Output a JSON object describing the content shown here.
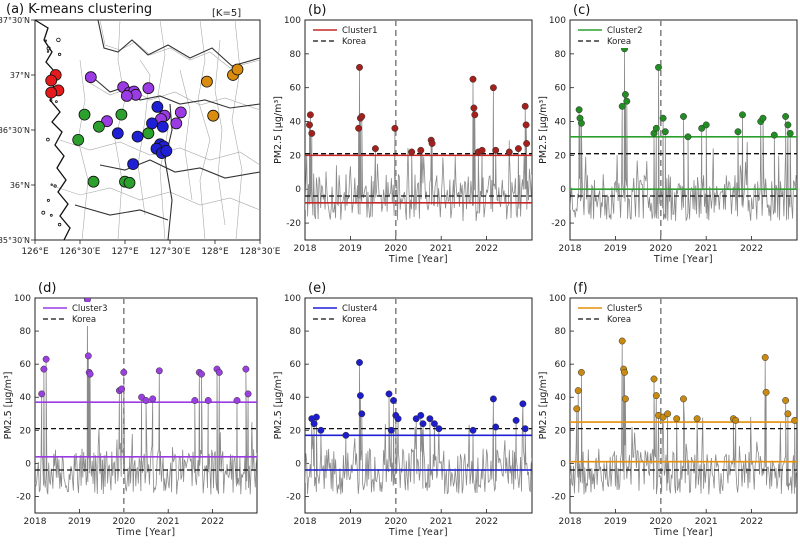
{
  "chart_data": [
    {
      "panel": "a",
      "type": "scatter",
      "title": "(a) K-means clustering",
      "annotation": "[K=5]",
      "x_ticks": [
        "126°E",
        "126°30′E",
        "127°E",
        "127°30′E",
        "128°E",
        "128°30′E"
      ],
      "y_ticks": [
        "35°30′N",
        "36°N",
        "36°30′N",
        "37°N",
        "37°30′N"
      ],
      "xlim": [
        126.0,
        128.5
      ],
      "ylim": [
        35.5,
        37.5
      ],
      "colors": {
        "c1": "#e41a1c",
        "c2": "#2ca02c",
        "c3": "#9b3be3",
        "c4": "#1f1fd6",
        "c5": "#d98c0e"
      },
      "stations": [
        {
          "cluster": "c1",
          "lon": 126.23,
          "lat": 37.0
        },
        {
          "cluster": "c1",
          "lon": 126.18,
          "lat": 36.95
        },
        {
          "cluster": "c1",
          "lon": 126.26,
          "lat": 36.86
        },
        {
          "cluster": "c1",
          "lon": 126.18,
          "lat": 36.84
        },
        {
          "cluster": "c3",
          "lon": 126.62,
          "lat": 36.98
        },
        {
          "cluster": "c3",
          "lon": 126.98,
          "lat": 36.89
        },
        {
          "cluster": "c3",
          "lon": 127.05,
          "lat": 36.84
        },
        {
          "cluster": "c3",
          "lon": 127.1,
          "lat": 36.85
        },
        {
          "cluster": "c3",
          "lon": 127.12,
          "lat": 36.82
        },
        {
          "cluster": "c3",
          "lon": 127.02,
          "lat": 36.81
        },
        {
          "cluster": "c3",
          "lon": 127.26,
          "lat": 36.88
        },
        {
          "cluster": "c3",
          "lon": 127.62,
          "lat": 36.66
        },
        {
          "cluster": "c3",
          "lon": 127.44,
          "lat": 36.63
        },
        {
          "cluster": "c3",
          "lon": 127.4,
          "lat": 36.6
        },
        {
          "cluster": "c3",
          "lon": 127.57,
          "lat": 36.56
        },
        {
          "cluster": "c3",
          "lon": 126.8,
          "lat": 36.58
        },
        {
          "cluster": "c2",
          "lon": 126.55,
          "lat": 36.64
        },
        {
          "cluster": "c2",
          "lon": 126.71,
          "lat": 36.53
        },
        {
          "cluster": "c2",
          "lon": 126.96,
          "lat": 36.64
        },
        {
          "cluster": "c2",
          "lon": 127.26,
          "lat": 36.47
        },
        {
          "cluster": "c2",
          "lon": 126.48,
          "lat": 36.41
        },
        {
          "cluster": "c2",
          "lon": 126.65,
          "lat": 36.03
        },
        {
          "cluster": "c2",
          "lon": 127.0,
          "lat": 36.03
        },
        {
          "cluster": "c2",
          "lon": 127.05,
          "lat": 36.02
        },
        {
          "cluster": "c4",
          "lon": 127.36,
          "lat": 36.71
        },
        {
          "cluster": "c4",
          "lon": 127.3,
          "lat": 36.56
        },
        {
          "cluster": "c4",
          "lon": 127.42,
          "lat": 36.53
        },
        {
          "cluster": "c4",
          "lon": 126.92,
          "lat": 36.47
        },
        {
          "cluster": "c4",
          "lon": 127.14,
          "lat": 36.44
        },
        {
          "cluster": "c4",
          "lon": 127.39,
          "lat": 36.37
        },
        {
          "cluster": "c4",
          "lon": 127.43,
          "lat": 36.35
        },
        {
          "cluster": "c4",
          "lon": 127.35,
          "lat": 36.33
        },
        {
          "cluster": "c4",
          "lon": 127.41,
          "lat": 36.29
        },
        {
          "cluster": "c4",
          "lon": 127.46,
          "lat": 36.31
        },
        {
          "cluster": "c4",
          "lon": 127.09,
          "lat": 36.19
        },
        {
          "cluster": "c5",
          "lon": 127.91,
          "lat": 36.94
        },
        {
          "cluster": "c5",
          "lon": 128.2,
          "lat": 37.0
        },
        {
          "cluster": "c5",
          "lon": 128.25,
          "lat": 37.05
        },
        {
          "cluster": "c5",
          "lon": 127.98,
          "lat": 36.63
        }
      ]
    },
    {
      "panel": "b",
      "type": "line",
      "title": "(b)",
      "color": "#c62828",
      "dot_color": "#a3201d",
      "legend": [
        "Cluster1",
        "Korea"
      ],
      "xlabel": "Time [Year]",
      "ylabel": "PM2.5 [μg/m³]",
      "xlim": [
        2018,
        2023
      ],
      "ylim": [
        -30,
        100
      ],
      "x_ticks": [
        2018,
        2019,
        2020,
        2021,
        2022
      ],
      "y_ticks": [
        -20,
        0,
        20,
        40,
        60,
        80,
        100
      ],
      "vline": 2020,
      "cluster_levels": [
        20,
        -8
      ],
      "korea_levels": [
        21,
        -4
      ],
      "peaks": [
        [
          2018.1,
          38
        ],
        [
          2018.12,
          44
        ],
        [
          2018.15,
          33
        ],
        [
          2019.2,
          72
        ],
        [
          2019.22,
          42
        ],
        [
          2019.18,
          36
        ],
        [
          2019.25,
          43
        ],
        [
          2019.55,
          24
        ],
        [
          2019.98,
          36
        ],
        [
          2020.35,
          22
        ],
        [
          2020.55,
          23
        ],
        [
          2020.78,
          29
        ],
        [
          2020.8,
          27
        ],
        [
          2021.7,
          65
        ],
        [
          2021.72,
          48
        ],
        [
          2021.74,
          44
        ],
        [
          2021.82,
          22
        ],
        [
          2021.9,
          23
        ],
        [
          2022.15,
          60
        ],
        [
          2022.2,
          23
        ],
        [
          2022.5,
          22
        ],
        [
          2022.7,
          24
        ],
        [
          2022.85,
          49
        ],
        [
          2022.87,
          38
        ],
        [
          2022.88,
          27
        ]
      ],
      "seed": 11
    },
    {
      "panel": "c",
      "type": "line",
      "title": "(c)",
      "color": "#2ca02c",
      "dot_color": "#248c24",
      "legend": [
        "Cluster2",
        "Korea"
      ],
      "xlabel": "Time [Year]",
      "ylabel": "PM2.5 [μg/m³]",
      "xlim": [
        2018,
        2023
      ],
      "ylim": [
        -30,
        100
      ],
      "x_ticks": [
        2018,
        2019,
        2020,
        2021,
        2022
      ],
      "y_ticks": [
        -20,
        0,
        20,
        40,
        60,
        80,
        100
      ],
      "vline": 2020,
      "cluster_levels": [
        31,
        0
      ],
      "korea_levels": [
        21,
        -4
      ],
      "peaks": [
        [
          2018.2,
          47
        ],
        [
          2018.22,
          42
        ],
        [
          2018.25,
          39
        ],
        [
          2019.2,
          83
        ],
        [
          2019.22,
          56
        ],
        [
          2019.15,
          49
        ],
        [
          2019.25,
          52
        ],
        [
          2019.85,
          33
        ],
        [
          2019.9,
          36
        ],
        [
          2019.95,
          72
        ],
        [
          2020.05,
          42
        ],
        [
          2020.1,
          34
        ],
        [
          2020.5,
          43
        ],
        [
          2020.6,
          31
        ],
        [
          2020.9,
          36
        ],
        [
          2021.0,
          38
        ],
        [
          2021.7,
          34
        ],
        [
          2021.8,
          44
        ],
        [
          2022.2,
          40
        ],
        [
          2022.25,
          42
        ],
        [
          2022.5,
          32
        ],
        [
          2022.75,
          43
        ],
        [
          2022.8,
          38
        ],
        [
          2022.85,
          33
        ]
      ],
      "seed": 23
    },
    {
      "panel": "d",
      "type": "line",
      "title": "(d)",
      "color": "#9b3be3",
      "dot_color": "#9a3fe0",
      "legend": [
        "Cluster3",
        "Korea"
      ],
      "xlabel": "Time [Year]",
      "ylabel": "PM2.5 [μg/m³]",
      "xlim": [
        2018,
        2023
      ],
      "ylim": [
        -30,
        100
      ],
      "x_ticks": [
        2018,
        2019,
        2020,
        2021,
        2022
      ],
      "y_ticks": [
        -20,
        0,
        20,
        40,
        60,
        80,
        100
      ],
      "vline": 2020,
      "cluster_levels": [
        37,
        4
      ],
      "korea_levels": [
        21,
        -4
      ],
      "peaks": [
        [
          2018.15,
          42
        ],
        [
          2018.2,
          57
        ],
        [
          2018.25,
          63
        ],
        [
          2019.18,
          99
        ],
        [
          2019.2,
          65
        ],
        [
          2019.22,
          55
        ],
        [
          2019.24,
          54
        ],
        [
          2019.9,
          44
        ],
        [
          2019.95,
          45
        ],
        [
          2020.0,
          55
        ],
        [
          2020.4,
          40
        ],
        [
          2020.5,
          38
        ],
        [
          2020.65,
          39
        ],
        [
          2020.8,
          56
        ],
        [
          2021.6,
          38
        ],
        [
          2021.7,
          55
        ],
        [
          2021.75,
          54
        ],
        [
          2021.9,
          38
        ],
        [
          2022.1,
          57
        ],
        [
          2022.15,
          55
        ],
        [
          2022.55,
          38
        ],
        [
          2022.75,
          57
        ],
        [
          2022.8,
          42
        ]
      ],
      "seed": 37
    },
    {
      "panel": "e",
      "type": "line",
      "title": "(e)",
      "color": "#1f1fd6",
      "dot_color": "#1d1dc9",
      "legend": [
        "Cluster4",
        "Korea"
      ],
      "xlabel": "Time [Year]",
      "ylabel": "PM2.5 [μg/m³]",
      "xlim": [
        2018,
        2023
      ],
      "ylim": [
        -30,
        100
      ],
      "x_ticks": [
        2018,
        2019,
        2020,
        2021,
        2022
      ],
      "y_ticks": [
        -20,
        0,
        20,
        40,
        60,
        80,
        100
      ],
      "vline": 2020,
      "cluster_levels": [
        17,
        -4
      ],
      "korea_levels": [
        21,
        -4
      ],
      "peaks": [
        [
          2018.15,
          27
        ],
        [
          2018.2,
          24
        ],
        [
          2018.25,
          28
        ],
        [
          2018.35,
          20
        ],
        [
          2018.9,
          17
        ],
        [
          2019.2,
          61
        ],
        [
          2019.22,
          41
        ],
        [
          2019.25,
          30
        ],
        [
          2019.85,
          42
        ],
        [
          2019.9,
          20
        ],
        [
          2019.95,
          38
        ],
        [
          2020.0,
          29
        ],
        [
          2020.05,
          27
        ],
        [
          2020.45,
          27
        ],
        [
          2020.55,
          29
        ],
        [
          2020.6,
          24
        ],
        [
          2020.75,
          27
        ],
        [
          2020.85,
          24
        ],
        [
          2020.95,
          21
        ],
        [
          2021.7,
          20
        ],
        [
          2022.15,
          39
        ],
        [
          2022.2,
          22
        ],
        [
          2022.65,
          26
        ],
        [
          2022.8,
          36
        ],
        [
          2022.85,
          21
        ]
      ],
      "seed": 41
    },
    {
      "panel": "f",
      "type": "line",
      "title": "(f)",
      "color": "#e58f0a",
      "dot_color": "#c98a12",
      "legend": [
        "Cluster5",
        "Korea"
      ],
      "xlabel": "Time [Year]",
      "ylabel": "PM2.5 [μg/m³]",
      "xlim": [
        2018,
        2023
      ],
      "ylim": [
        -30,
        100
      ],
      "x_ticks": [
        2018,
        2019,
        2020,
        2021,
        2022
      ],
      "y_ticks": [
        -20,
        0,
        20,
        40,
        60,
        80,
        100
      ],
      "vline": 2020,
      "cluster_levels": [
        25,
        1
      ],
      "korea_levels": [
        21,
        -4
      ],
      "peaks": [
        [
          2018.15,
          33
        ],
        [
          2018.18,
          44
        ],
        [
          2018.25,
          55
        ],
        [
          2019.15,
          74
        ],
        [
          2019.18,
          57
        ],
        [
          2019.2,
          55
        ],
        [
          2019.22,
          39
        ],
        [
          2019.85,
          51
        ],
        [
          2019.9,
          41
        ],
        [
          2019.95,
          29
        ],
        [
          2020.05,
          28
        ],
        [
          2020.15,
          30
        ],
        [
          2020.35,
          27
        ],
        [
          2020.5,
          39
        ],
        [
          2020.8,
          27
        ],
        [
          2021.6,
          27
        ],
        [
          2021.65,
          26
        ],
        [
          2022.3,
          64
        ],
        [
          2022.32,
          43
        ],
        [
          2022.75,
          38
        ],
        [
          2022.8,
          30
        ],
        [
          2022.95,
          26
        ]
      ],
      "seed": 53
    }
  ]
}
